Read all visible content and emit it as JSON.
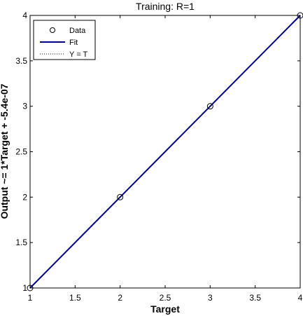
{
  "chart_data": {
    "type": "scatter",
    "title": "Training: R=1",
    "xlabel": "Target",
    "ylabel": "Output ~= 1*Target + -5.4e-07",
    "xlim": [
      1,
      4
    ],
    "ylim": [
      1,
      4
    ],
    "xticks": [
      "1",
      "1.5",
      "2",
      "2.5",
      "3",
      "3.5",
      "4"
    ],
    "yticks": [
      "1",
      "1.5",
      "2",
      "2.5",
      "3",
      "3.5",
      "4"
    ],
    "grid": false,
    "legend_position": "top-left",
    "series": [
      {
        "name": "Data",
        "kind": "markers",
        "marker": "circle",
        "color": "#000000",
        "x": [
          1,
          2,
          3,
          4
        ],
        "y": [
          1,
          2,
          3,
          4
        ]
      },
      {
        "name": "Fit",
        "kind": "line",
        "style": "solid",
        "color": "#00008F",
        "x": [
          1,
          4
        ],
        "y": [
          1,
          4
        ]
      },
      {
        "name": "Y = T",
        "kind": "line",
        "style": "dotted",
        "color": "#000000",
        "x": [
          1,
          4
        ],
        "y": [
          1,
          4
        ]
      }
    ]
  }
}
